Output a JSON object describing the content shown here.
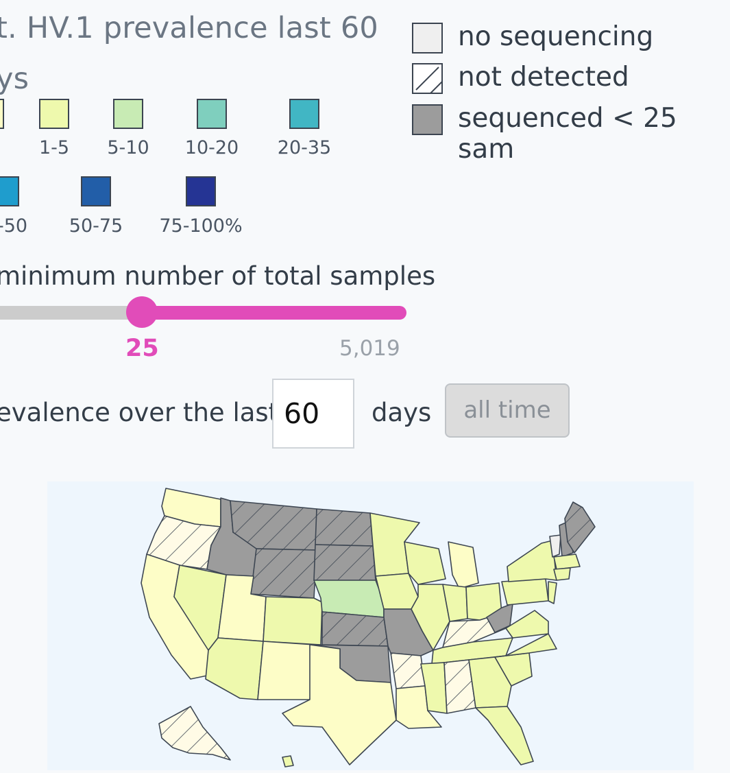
{
  "title": {
    "line1": "t. HV.1 prevalence last 60",
    "line2": "ys"
  },
  "legend_colors": [
    {
      "label": "1-5",
      "color": "#eef9ad"
    },
    {
      "label": "5-10",
      "color": "#c8ebb4"
    },
    {
      "label": "10-20",
      "color": "#7fcfbe"
    },
    {
      "label": "20-35",
      "color": "#41b6c4"
    },
    {
      "label": "-50",
      "color": "#1f9dcd"
    },
    {
      "label": "50-75",
      "color": "#225ea8"
    },
    {
      "label": "75-100%",
      "color": "#253494"
    }
  ],
  "legend_partial_first": {
    "label": "",
    "color": "#fdfdc7"
  },
  "legend_status": [
    {
      "label": "no sequencing",
      "color": "#efefef"
    },
    {
      "label": "not detected",
      "color": "#ffffff"
    },
    {
      "label": "sequenced < 25 sam",
      "color": "#9c9c9c"
    }
  ],
  "slider": {
    "title": "minimum number of total samples",
    "value": "25",
    "max": "5,019"
  },
  "days_filter": {
    "prefix": "evalence over the last",
    "value": "60",
    "suffix": "days",
    "button": "all time"
  },
  "map": {
    "colors": {
      "under1": "#fdfdc7",
      "r1_5": "#eef9ad",
      "r5_10": "#c8ebb4",
      "low_samples": "#9c9c9c",
      "none": "#efefef",
      "border": "#3d4652",
      "background": "#eef6fd"
    },
    "states": {
      "WA": "under1",
      "OR": "not_detected",
      "CA": "under1",
      "NV": "r1_5",
      "ID": "low_samples",
      "MT": "low_samples_hatched",
      "WY": "low_samples_hatched",
      "UT": "under1",
      "CO": "r1_5",
      "AZ": "r1_5",
      "NM": "under1",
      "ND": "low_samples_hatched",
      "SD": "low_samples_hatched",
      "NE": "r5_10",
      "KS": "low_samples_hatched",
      "OK": "low_samples",
      "TX": "under1",
      "MN": "r1_5",
      "IA": "r1_5",
      "MO": "low_samples",
      "AR": "not_detected",
      "LA": "under1",
      "WI": "r1_5",
      "IL": "r1_5",
      "MI": "under1",
      "IN": "r1_5",
      "OH": "r1_5",
      "KY": "not_detected",
      "TN": "r1_5",
      "MS": "r1_5",
      "AL": "not_detected",
      "GA": "r1_5",
      "FL": "r1_5",
      "SC": "r1_5",
      "NC": "r1_5",
      "VA": "r1_5",
      "WV": "low_samples",
      "PA": "r1_5",
      "NY": "r1_5",
      "VT": "none",
      "NH": "low_samples",
      "ME": "low_samples_hatched",
      "MA": "r1_5",
      "CT": "r1_5",
      "NJ": "r1_5",
      "AK": "not_detected",
      "HI": "r1_5"
    }
  }
}
